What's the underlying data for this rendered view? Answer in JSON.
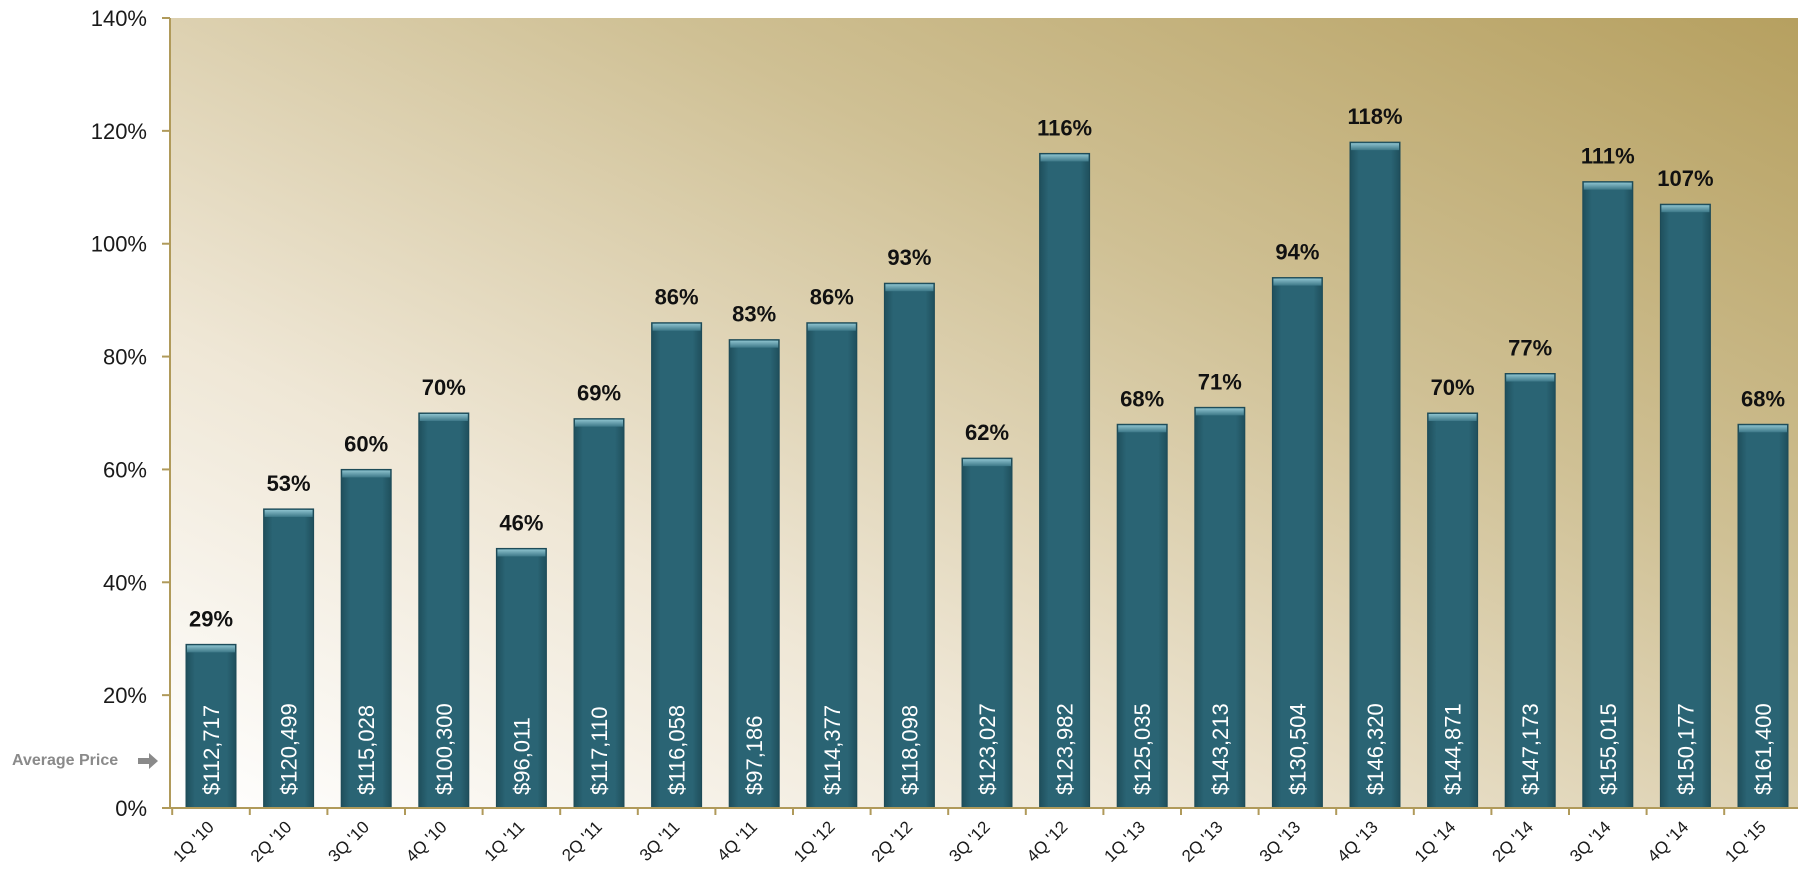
{
  "colors": {
    "bar": "#2a6272",
    "bar_edge": "#1d4a57",
    "bar_cap": "#5d97a6",
    "axis": "#b09a5a",
    "bg_light": "#fbf8f3",
    "bg_gold": "#b6a268"
  },
  "annotation": {
    "average_price_label": "Average Price",
    "arrow_icon": "arrow-right-icon"
  },
  "chart_data": {
    "type": "bar",
    "title": "",
    "xlabel": "",
    "ylabel": "",
    "ylim": [
      0,
      140
    ],
    "yticks": [
      "0%",
      "20%",
      "40%",
      "60%",
      "80%",
      "100%",
      "120%",
      "140%"
    ],
    "grid": false,
    "categories": [
      "1Q '10",
      "2Q '10",
      "3Q '10",
      "4Q '10",
      "1Q '11",
      "2Q '11",
      "3Q '11",
      "4Q '11",
      "1Q '12",
      "2Q '12",
      "3Q '12",
      "4Q '12",
      "1Q '13",
      "2Q '13",
      "3Q '13",
      "4Q '13",
      "1Q '14",
      "2Q '14",
      "3Q '14",
      "4Q '14",
      "1Q '15"
    ],
    "values": [
      29,
      53,
      60,
      70,
      46,
      69,
      86,
      83,
      86,
      93,
      62,
      116,
      68,
      71,
      94,
      118,
      70,
      77,
      111,
      107,
      68
    ],
    "value_labels": [
      "29%",
      "53%",
      "60%",
      "70%",
      "46%",
      "69%",
      "86%",
      "83%",
      "86%",
      "93%",
      "62%",
      "116%",
      "68%",
      "71%",
      "94%",
      "118%",
      "70%",
      "77%",
      "111%",
      "107%",
      "68%"
    ],
    "average_prices": [
      "$112,717",
      "$120,499",
      "$115,028",
      "$100,300",
      "$96,011",
      "$117,110",
      "$116,058",
      "$97,186",
      "$114,377",
      "$118,098",
      "$123,027",
      "$123,982",
      "$125,035",
      "$143,213",
      "$130,504",
      "$146,320",
      "$144,871",
      "$147,173",
      "$155,015",
      "$150,177",
      "$161,400"
    ]
  }
}
